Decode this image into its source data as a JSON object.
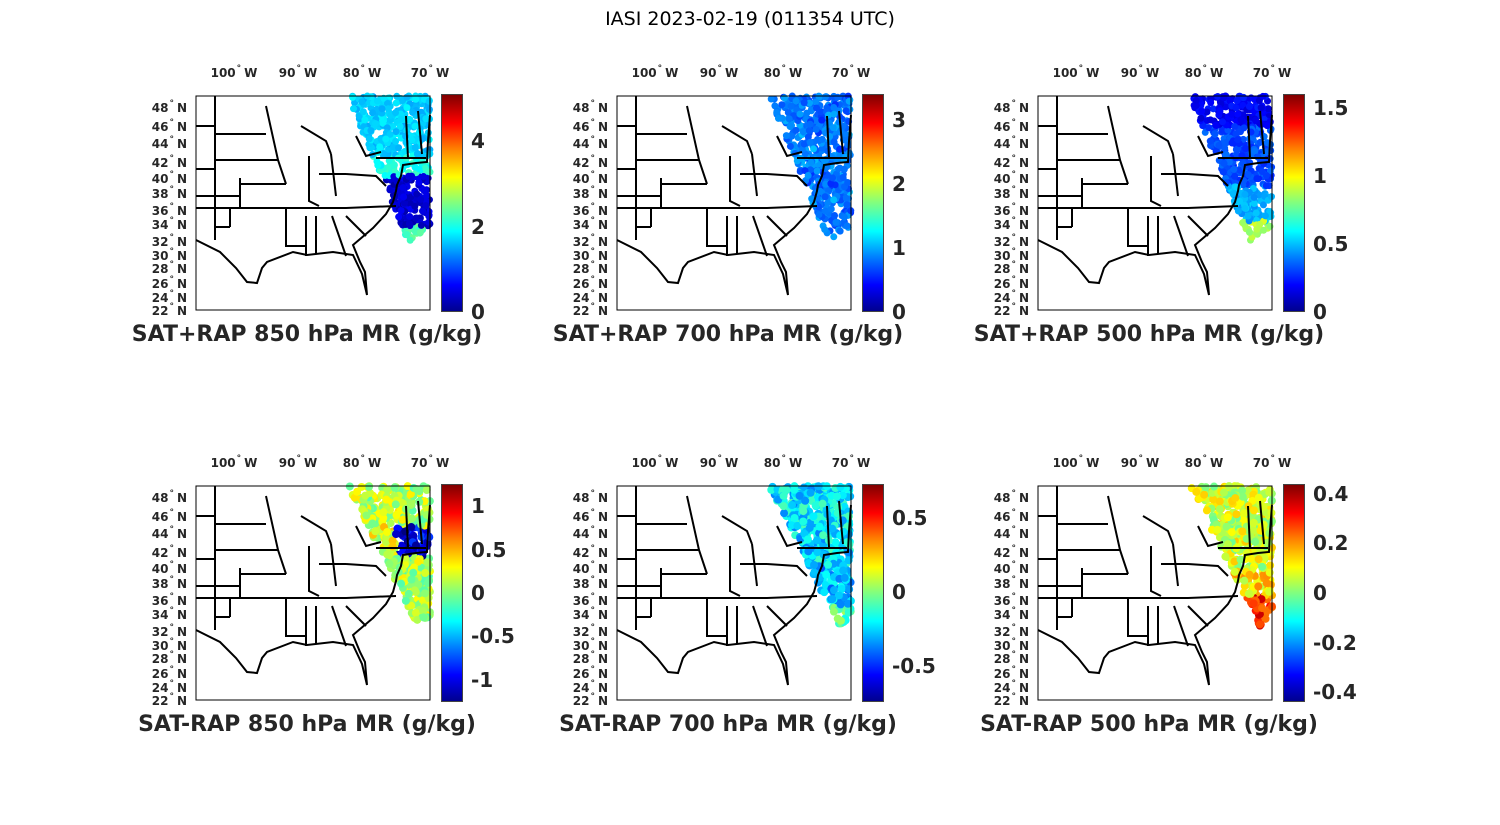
{
  "title": "IASI 2023-02-19 (011354 UTC)",
  "lon_labels": [
    "100",
    "90",
    "80",
    "70"
  ],
  "lon_suffix": "W",
  "lat_labels": [
    "48",
    "46",
    "44",
    "42",
    "40",
    "38",
    "36",
    "34",
    "32",
    "30",
    "28",
    "26",
    "24",
    "22"
  ],
  "lat_suffix": "N",
  "degree_symbol": "°",
  "colormap": "jet",
  "chart_data": [
    {
      "type": "heatmap",
      "title": "SAT+RAP 850 hPa MR (g/kg)",
      "clim": [
        0,
        5.1
      ],
      "ticks": [
        "0",
        "2",
        "4"
      ],
      "tick_values": [
        0,
        2,
        4
      ]
    },
    {
      "type": "heatmap",
      "title": "SAT+RAP 700 hPa MR (g/kg)",
      "clim": [
        0,
        3.4
      ],
      "ticks": [
        "0",
        "1",
        "2",
        "3"
      ],
      "tick_values": [
        0,
        1,
        2,
        3
      ]
    },
    {
      "type": "heatmap",
      "title": "SAT+RAP 500 hPa MR (g/kg)",
      "clim": [
        0,
        1.6
      ],
      "ticks": [
        "0",
        "0.5",
        "1",
        "1.5"
      ],
      "tick_values": [
        0,
        0.5,
        1,
        1.5
      ]
    },
    {
      "type": "heatmap",
      "title": "SAT-RAP 850 hPa MR (g/kg)",
      "clim": [
        -1.26,
        1.26
      ],
      "ticks": [
        "-1",
        "-0.5",
        "0",
        "0.5",
        "1"
      ],
      "tick_values": [
        -1,
        -0.5,
        0,
        0.5,
        1
      ]
    },
    {
      "type": "heatmap",
      "title": "SAT-RAP 700 hPa MR (g/kg)",
      "clim": [
        -0.74,
        0.73
      ],
      "ticks": [
        "-0.5",
        "0",
        "0.5"
      ],
      "tick_values": [
        -0.5,
        0,
        0.5
      ]
    },
    {
      "type": "heatmap",
      "title": "SAT-RAP 500 hPa MR (g/kg)",
      "clim": [
        -0.44,
        0.44
      ],
      "ticks": [
        "-0.4",
        "-0.2",
        "0",
        "0.2",
        "0.4"
      ],
      "tick_values": [
        -0.4,
        -0.2,
        0,
        0.2,
        0.4
      ]
    }
  ]
}
